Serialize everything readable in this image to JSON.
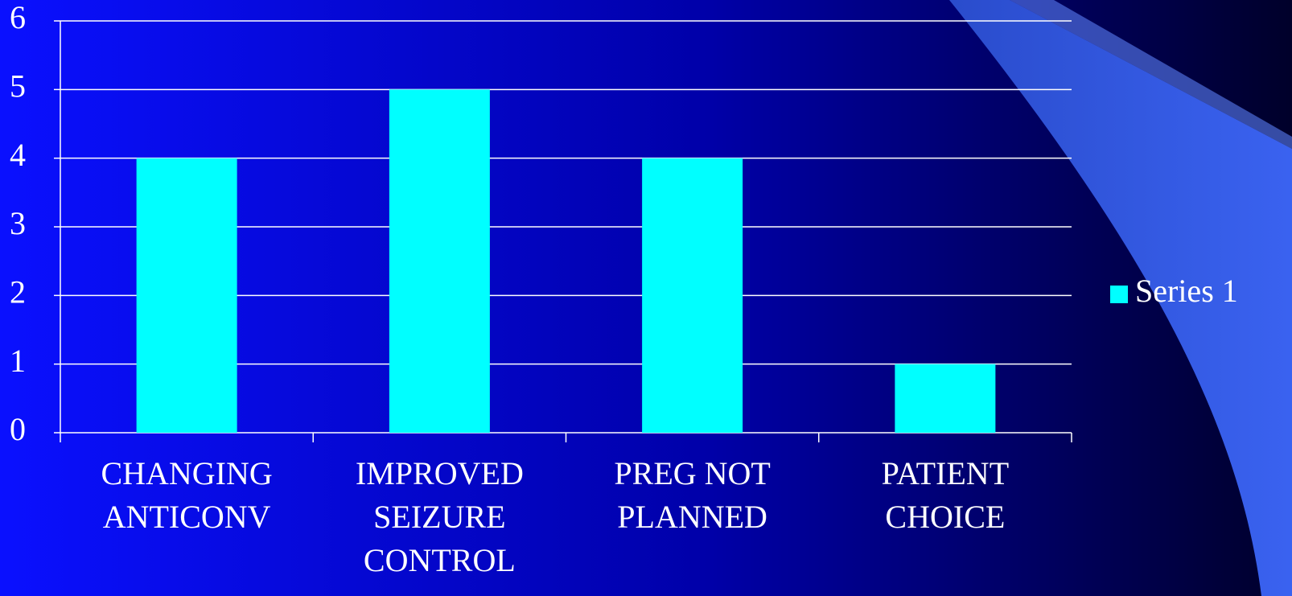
{
  "chart_data": {
    "type": "bar",
    "categories": [
      [
        "CHANGING",
        "ANTICONV"
      ],
      [
        "IMPROVED",
        "SEIZURE",
        "CONTROL"
      ],
      [
        "PREG NOT",
        "PLANNED"
      ],
      [
        "PATIENT",
        "CHOICE"
      ]
    ],
    "series": [
      {
        "name": "Series 1",
        "color": "#00ffff",
        "values": [
          4,
          5,
          4,
          1
        ]
      }
    ],
    "ylim": [
      0,
      6
    ],
    "yticks": [
      0,
      1,
      2,
      3,
      4,
      5,
      6
    ],
    "grid": true,
    "legend": "right"
  }
}
